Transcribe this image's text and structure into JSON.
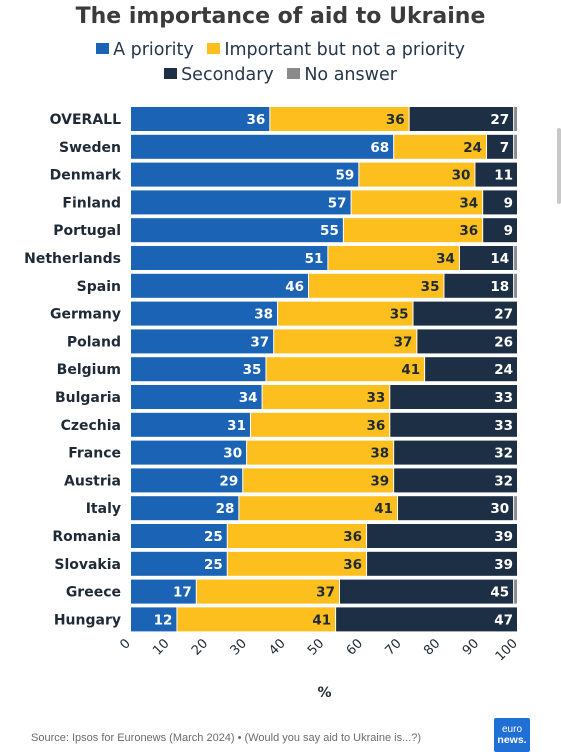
{
  "chart_data": {
    "type": "bar",
    "orientation": "horizontal",
    "stacked": true,
    "title": "The importance of aid to Ukraine",
    "xlabel": "%",
    "xlim": [
      0,
      100
    ],
    "xticks": [
      0,
      10,
      20,
      30,
      40,
      50,
      60,
      70,
      80,
      90,
      100
    ],
    "legend_position": "top",
    "categories": [
      "OVERALL",
      "Sweden",
      "Denmark",
      "Finland",
      "Portugal",
      "Netherlands",
      "Spain",
      "Germany",
      "Poland",
      "Belgium",
      "Bulgaria",
      "Czechia",
      "France",
      "Austria",
      "Italy",
      "Romania",
      "Slovakia",
      "Greece",
      "Hungary"
    ],
    "series": [
      {
        "name": "A priority",
        "color": "#1a63b5",
        "values": [
          36,
          68,
          59,
          57,
          55,
          51,
          46,
          38,
          37,
          35,
          34,
          31,
          30,
          29,
          28,
          25,
          25,
          17,
          12
        ]
      },
      {
        "name": "Important but not a priority",
        "color": "#fcbf1e",
        "values": [
          36,
          24,
          30,
          34,
          36,
          34,
          35,
          35,
          37,
          41,
          33,
          36,
          38,
          39,
          41,
          36,
          36,
          37,
          41
        ]
      },
      {
        "name": "Secondary",
        "color": "#1d2f45",
        "values": [
          27,
          7,
          11,
          9,
          9,
          14,
          18,
          27,
          26,
          24,
          33,
          33,
          32,
          32,
          30,
          39,
          39,
          45,
          47
        ]
      },
      {
        "name": "No answer",
        "color": "#8a8a8a",
        "values": [
          1,
          1,
          0,
          0,
          0,
          1,
          1,
          0,
          0,
          0,
          0,
          0,
          0,
          0,
          1,
          0,
          0,
          1,
          0
        ]
      }
    ]
  },
  "footer": {
    "source": "Source: Ipsos for Euronews (March 2024) • (Would you say aid to Ukraine is...?)",
    "logo_line1": "euro",
    "logo_line2": "news."
  }
}
